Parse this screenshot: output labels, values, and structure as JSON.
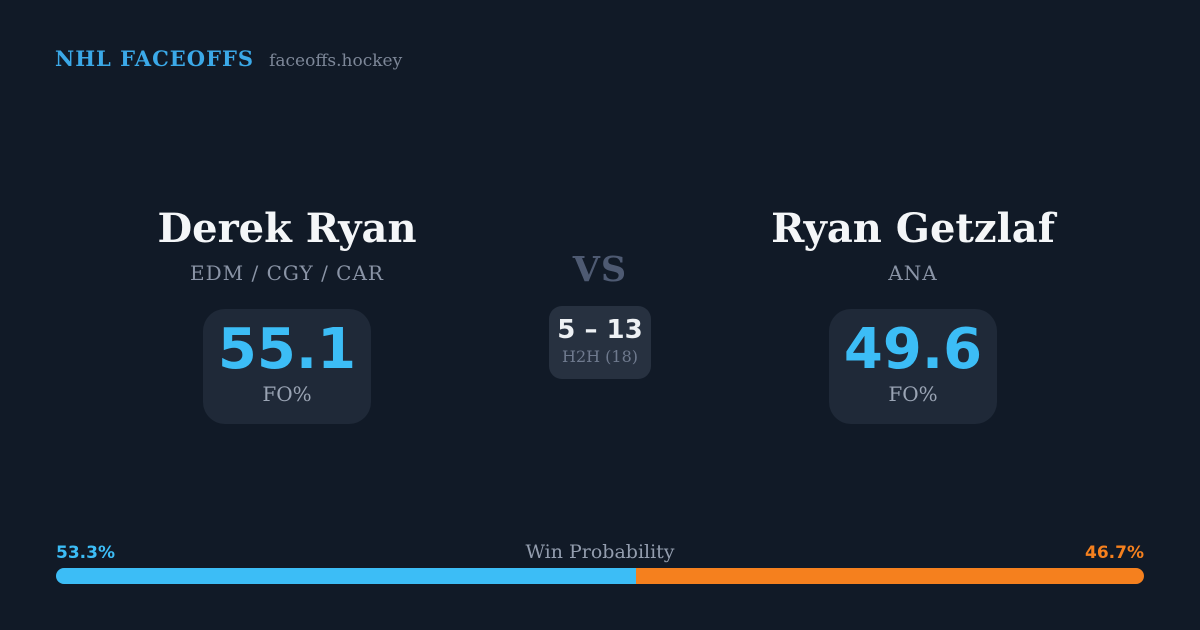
{
  "brand": {
    "title": "NHL FACEOFFS",
    "domain": "faceoffs.hockey"
  },
  "players": {
    "left": {
      "name": "Derek Ryan",
      "teams": "EDM / CGY / CAR",
      "fo_pct": "55.1",
      "stat_label": "FO%"
    },
    "right": {
      "name": "Ryan Getzlaf",
      "teams": "ANA",
      "fo_pct": "49.6",
      "stat_label": "FO%"
    }
  },
  "matchup": {
    "vs_label": "VS",
    "h2h_score": "5 – 13",
    "h2h_label": "H2H (18)"
  },
  "win_probability": {
    "label": "Win Probability",
    "left_pct": "53.3%",
    "right_pct": "46.7%",
    "left_value": 53.3,
    "right_value": 46.7
  },
  "colors": {
    "background": "#111a27",
    "card": "#1f2938",
    "h2h_card": "#273140",
    "accent_blue": "#3cbdf6",
    "brand_blue": "#3ba9e8",
    "accent_orange": "#f5801e",
    "text_primary": "#f4f6f8",
    "text_muted": "#8a94a6",
    "vs_gray": "#4e5a72"
  }
}
